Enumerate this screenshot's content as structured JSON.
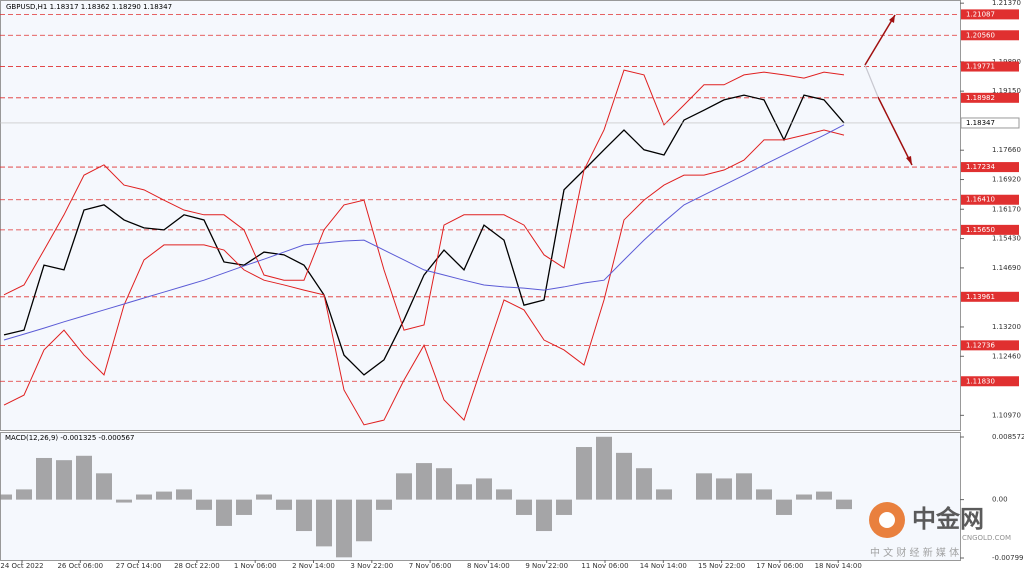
{
  "chart_data": [
    {
      "type": "line",
      "title": "GBPUSD,H1  1.18317 1.18362 1.18290 1.18347",
      "ylim": [
        1.106,
        1.2145
      ],
      "yticks": [
        {
          "value": 1.2137,
          "label": "1.21370"
        },
        {
          "value": 1.1989,
          "label": "1.19890"
        },
        {
          "value": 1.1915,
          "label": "1.19150"
        },
        {
          "value": 1.1766,
          "label": "1.17660"
        },
        {
          "value": 1.1692,
          "label": "1.16920"
        },
        {
          "value": 1.1617,
          "label": "1.16170"
        },
        {
          "value": 1.1543,
          "label": "1.15430"
        },
        {
          "value": 1.1469,
          "label": "1.14690"
        },
        {
          "value": 1.132,
          "label": "1.13200"
        },
        {
          "value": 1.1246,
          "label": "1.12460"
        },
        {
          "value": 1.1097,
          "label": "1.10970"
        }
      ],
      "levels": [
        1.21087,
        {
          "value": 1.2056,
          "label": "1.20560"
        },
        1.19771,
        1.18982,
        1.17234,
        {
          "value": 1.1641,
          "label": "1.16410"
        },
        {
          "value": 1.1565,
          "label": "1.15650"
        },
        1.13961,
        1.12736,
        {
          "value": 1.1183,
          "label": "1.11830"
        }
      ],
      "level_color": "#e03030",
      "current_price": 1.18347,
      "series": [
        {
          "color": "#000000",
          "values": [
            1.13,
            1.1312,
            1.1476,
            1.1464,
            1.1615,
            1.1628,
            1.159,
            1.157,
            1.1565,
            1.1603,
            1.159,
            1.1484,
            1.1476,
            1.1509,
            1.1502,
            1.1476,
            1.1401,
            1.1249,
            1.1199,
            1.1237,
            1.1338,
            1.1451,
            1.1514,
            1.1464,
            1.1577,
            1.1539,
            1.1375,
            1.1388,
            1.1666,
            1.1716,
            1.1767,
            1.1817,
            1.1767,
            1.1754,
            1.1842,
            1.1867,
            1.1893,
            1.1905,
            1.1893,
            1.1792,
            1.1905,
            1.1893,
            1.18347
          ]
        },
        {
          "color": "#e02020",
          "values": [
            1.1401,
            1.1426,
            1.1514,
            1.1603,
            1.1703,
            1.1729,
            1.1678,
            1.1666,
            1.164,
            1.1615,
            1.1603,
            1.1603,
            1.1565,
            1.1451,
            1.1438,
            1.1438,
            1.1565,
            1.1628,
            1.164,
            1.1464,
            1.1312,
            1.1325,
            1.1577,
            1.1603,
            1.1603,
            1.1603,
            1.1577,
            1.1502,
            1.1469,
            1.1716,
            1.1817,
            1.1968,
            1.1956,
            1.183,
            1.188,
            1.1931,
            1.1931,
            1.1956,
            1.1963,
            1.1956,
            1.1948,
            1.1963,
            1.1956
          ]
        },
        {
          "color": "#e02020",
          "values": [
            1.1123,
            1.1148,
            1.1262,
            1.1312,
            1.1249,
            1.1199,
            1.1375,
            1.1489,
            1.1527,
            1.1527,
            1.1527,
            1.1514,
            1.1464,
            1.1438,
            1.1426,
            1.1413,
            1.1401,
            1.1161,
            1.1073,
            1.1085,
            1.1186,
            1.1274,
            1.1136,
            1.1085,
            1.1237,
            1.1388,
            1.1363,
            1.1287,
            1.1262,
            1.1224,
            1.1388,
            1.159,
            1.164,
            1.1678,
            1.1703,
            1.1703,
            1.1716,
            1.1741,
            1.1792,
            1.1792,
            1.1804,
            1.1817,
            1.1804
          ]
        },
        {
          "color": "#5b5bd6",
          "values": [
            1.1287,
            1.1302,
            1.1317,
            1.1333,
            1.1348,
            1.1363,
            1.1378,
            1.1393,
            1.1408,
            1.1423,
            1.1438,
            1.1456,
            1.1474,
            1.1491,
            1.1509,
            1.1527,
            1.1532,
            1.1537,
            1.1539,
            1.1514,
            1.1489,
            1.1464,
            1.1451,
            1.1438,
            1.1426,
            1.1421,
            1.1418,
            1.1413,
            1.1421,
            1.1431,
            1.1438,
            1.1489,
            1.1539,
            1.1585,
            1.1628,
            1.1653,
            1.1678,
            1.1703,
            1.1729,
            1.1754,
            1.1779,
            1.1804,
            1.183
          ]
        }
      ]
    },
    {
      "type": "bar",
      "title": "MACD(12,26,9) -0.001325 -0.000567",
      "color": "#8a8a8a",
      "ylim": [
        -0.007991,
        0.008572
      ],
      "yticks": [
        0.008572,
        {
          "value": 0,
          "label": "0.00"
        },
        -0.007991
      ],
      "values": [
        0.0007,
        0.0014,
        0.0057,
        0.0054,
        0.006,
        0.0036,
        -0.0004,
        0.0007,
        0.0011,
        0.0014,
        -0.0014,
        -0.0036,
        -0.0021,
        0.0007,
        -0.0014,
        -0.0043,
        -0.0064,
        -0.0079,
        -0.0057,
        -0.0014,
        0.0036,
        0.005,
        0.0043,
        0.0021,
        0.0029,
        0.0014,
        -0.0021,
        -0.0043,
        -0.0021,
        0.0072,
        0.0086,
        0.0064,
        0.0043,
        0.0014,
        0,
        0.0036,
        0.0029,
        0.0036,
        0.0014,
        -0.0021,
        0.0007,
        0.0011,
        -0.0013
      ],
      "xtick_labels": [
        "24 Oct 2022",
        "26 Oct 06:00",
        "27 Oct 14:00",
        "28 Oct 22:00",
        "1 Nov 06:00",
        "2 Nov 14:00",
        "3 Nov 22:00",
        "7 Nov 06:00",
        "8 Nov 14:00",
        "9 Nov 22:00",
        "11 Nov 06:00",
        "14 Nov 14:00",
        "15 Nov 22:00",
        "17 Nov 06:00",
        "18 Nov 14:00"
      ]
    }
  ],
  "watermark": {
    "brand": "中金网",
    "site": "CNGOLD.COM",
    "slogan": "中 文 财 经 新 媒 体"
  }
}
